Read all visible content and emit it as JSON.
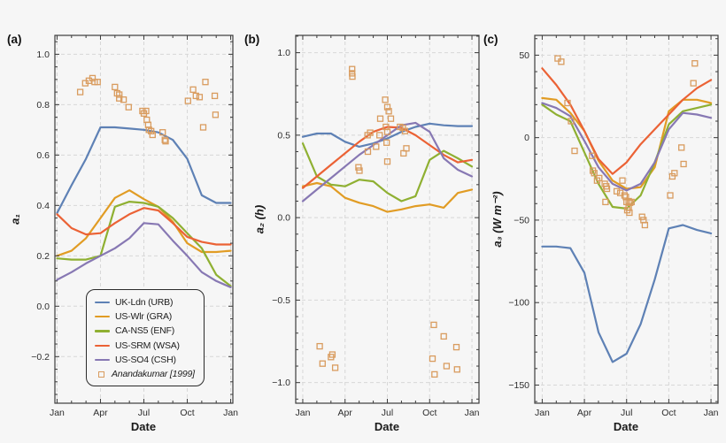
{
  "figure": {
    "background": "#f6f6f6",
    "frame_color": "#3c3c3c",
    "grid_color": "#d7d7d7",
    "tick_label_color": "#2d2d2d",
    "scatter_color": "#d99c5f",
    "series_colors": {
      "blue": "#5e81b5",
      "orange": "#e19c24",
      "green": "#8fb032",
      "red": "#eb6235",
      "purple": "#8778b3"
    }
  },
  "legend": {
    "items": [
      {
        "label": "UK-Ldn (URB)",
        "color": "#5e81b5",
        "type": "line"
      },
      {
        "label": "US-Wlr (GRA)",
        "color": "#e19c24",
        "type": "line"
      },
      {
        "label": "CA-NS5 (ENF)",
        "color": "#8fb032",
        "type": "line"
      },
      {
        "label": "US-SRM (WSA)",
        "color": "#eb6235",
        "type": "line"
      },
      {
        "label": "US-SO4 (CSH)",
        "color": "#8778b3",
        "type": "line"
      },
      {
        "label": "Anandakumar [1999]",
        "color": "#d99c5f",
        "type": "marker",
        "italic": true
      }
    ]
  },
  "chart_data": [
    {
      "type": "line",
      "panel_label": "(a)",
      "ylabel": "a₁",
      "xlabel": "Date",
      "x": [
        1,
        2,
        3,
        4,
        5,
        6,
        7,
        8,
        9,
        10,
        11,
        12,
        13
      ],
      "xtick_positions": [
        1,
        4,
        7,
        10,
        13
      ],
      "xtick_labels": [
        "Jan",
        "Apr",
        "Jul",
        "Oct",
        "Jan"
      ],
      "xlim": [
        0.85,
        13.15
      ],
      "ylim": [
        -0.385,
        1.075
      ],
      "ytick_values": [
        1.0,
        0.8,
        0.6,
        0.4,
        0.2,
        0.0,
        -0.2
      ],
      "ytick_labels": [
        "1.0",
        "0.8",
        "0.6",
        "0.4",
        "0.2",
        "0.0",
        "−0.2"
      ],
      "y_minor_step": 0.05,
      "series": [
        {
          "name": "UK-Ldn (URB)",
          "color": "#5e81b5",
          "values": [
            0.37,
            0.48,
            0.585,
            0.71,
            0.71,
            0.705,
            0.7,
            0.69,
            0.66,
            0.585,
            0.44,
            0.41,
            0.41
          ]
        },
        {
          "name": "US-Wlr (GRA)",
          "color": "#e19c24",
          "values": [
            0.2,
            0.22,
            0.27,
            0.35,
            0.43,
            0.46,
            0.425,
            0.395,
            0.335,
            0.25,
            0.215,
            0.215,
            0.22
          ]
        },
        {
          "name": "CA-NS5 (ENF)",
          "color": "#8fb032",
          "values": [
            0.19,
            0.185,
            0.185,
            0.2,
            0.395,
            0.415,
            0.41,
            0.395,
            0.35,
            0.29,
            0.23,
            0.125,
            0.08
          ]
        },
        {
          "name": "US-SRM (WSA)",
          "color": "#eb6235",
          "values": [
            0.365,
            0.31,
            0.285,
            0.29,
            0.33,
            0.365,
            0.39,
            0.38,
            0.33,
            0.275,
            0.255,
            0.245,
            0.245
          ]
        },
        {
          "name": "US-SO4 (CSH)",
          "color": "#8778b3",
          "values": [
            0.105,
            0.135,
            0.17,
            0.2,
            0.23,
            0.27,
            0.33,
            0.325,
            0.26,
            0.2,
            0.135,
            0.1,
            0.075
          ]
        }
      ],
      "scatter": {
        "name": "Anandakumar [1999]",
        "points": [
          [
            2.6,
            0.85
          ],
          [
            2.95,
            0.885
          ],
          [
            3.2,
            0.895
          ],
          [
            3.45,
            0.905
          ],
          [
            3.6,
            0.89
          ],
          [
            3.8,
            0.89
          ],
          [
            5.0,
            0.87
          ],
          [
            5.15,
            0.845
          ],
          [
            5.3,
            0.84
          ],
          [
            5.3,
            0.825
          ],
          [
            5.6,
            0.82
          ],
          [
            5.95,
            0.79
          ],
          [
            6.9,
            0.775
          ],
          [
            7.0,
            0.765
          ],
          [
            7.15,
            0.775
          ],
          [
            7.2,
            0.74
          ],
          [
            7.3,
            0.72
          ],
          [
            7.35,
            0.7
          ],
          [
            7.5,
            0.695
          ],
          [
            7.6,
            0.68
          ],
          [
            8.3,
            0.69
          ],
          [
            8.45,
            0.66
          ],
          [
            8.5,
            0.655
          ],
          [
            10.05,
            0.815
          ],
          [
            10.4,
            0.86
          ],
          [
            10.6,
            0.835
          ],
          [
            10.85,
            0.83
          ],
          [
            11.25,
            0.89
          ],
          [
            11.1,
            0.71
          ],
          [
            11.9,
            0.835
          ],
          [
            11.95,
            0.76
          ]
        ]
      }
    },
    {
      "type": "line",
      "panel_label": "(b)",
      "ylabel": "a₂ (h)",
      "xlabel": "Date",
      "x": [
        1,
        2,
        3,
        4,
        5,
        6,
        7,
        8,
        9,
        10,
        11,
        12,
        13
      ],
      "xtick_positions": [
        1,
        4,
        7,
        10,
        13
      ],
      "xtick_labels": [
        "Jan",
        "Apr",
        "Jul",
        "Oct",
        "Jan"
      ],
      "xlim": [
        0.5,
        13.5
      ],
      "ylim": [
        -1.125,
        1.105
      ],
      "ytick_values": [
        1.0,
        0.5,
        0.0,
        -0.5,
        -1.0
      ],
      "ytick_labels": [
        "1.0",
        "0.5",
        "0.0",
        "−0.5",
        "−1.0"
      ],
      "y_minor_step": 0.1,
      "series": [
        {
          "name": "UK-Ldn (URB)",
          "color": "#5e81b5",
          "values": [
            0.49,
            0.51,
            0.51,
            0.46,
            0.43,
            0.45,
            0.48,
            0.52,
            0.55,
            0.57,
            0.56,
            0.555,
            0.555
          ]
        },
        {
          "name": "US-Wlr (GRA)",
          "color": "#e19c24",
          "values": [
            0.19,
            0.21,
            0.19,
            0.12,
            0.09,
            0.07,
            0.035,
            0.05,
            0.07,
            0.08,
            0.06,
            0.15,
            0.17
          ]
        },
        {
          "name": "CA-NS5 (ENF)",
          "color": "#8fb032",
          "values": [
            0.45,
            0.25,
            0.2,
            0.19,
            0.23,
            0.22,
            0.15,
            0.1,
            0.13,
            0.35,
            0.405,
            0.36,
            0.31
          ]
        },
        {
          "name": "US-SRM (WSA)",
          "color": "#eb6235",
          "values": [
            0.18,
            0.25,
            0.32,
            0.39,
            0.46,
            0.52,
            0.55,
            0.545,
            0.5,
            0.44,
            0.38,
            0.335,
            0.35
          ]
        },
        {
          "name": "US-SO4 (CSH)",
          "color": "#8778b3",
          "values": [
            0.1,
            0.17,
            0.24,
            0.31,
            0.38,
            0.44,
            0.5,
            0.56,
            0.575,
            0.52,
            0.36,
            0.29,
            0.25
          ]
        }
      ],
      "scatter": {
        "name": "Anandakumar [1999]",
        "points": [
          [
            4.5,
            0.9
          ],
          [
            4.5,
            0.875
          ],
          [
            4.52,
            0.855
          ],
          [
            4.95,
            0.305
          ],
          [
            5.02,
            0.285
          ],
          [
            5.6,
            0.5
          ],
          [
            5.78,
            0.515
          ],
          [
            5.62,
            0.4
          ],
          [
            6.2,
            0.43
          ],
          [
            6.45,
            0.5
          ],
          [
            6.5,
            0.6
          ],
          [
            6.85,
            0.715
          ],
          [
            7.0,
            0.67
          ],
          [
            7.1,
            0.645
          ],
          [
            7.25,
            0.6
          ],
          [
            6.9,
            0.55
          ],
          [
            7.0,
            0.52
          ],
          [
            6.95,
            0.455
          ],
          [
            7.0,
            0.34
          ],
          [
            7.9,
            0.55
          ],
          [
            8.1,
            0.545
          ],
          [
            8.25,
            0.525
          ],
          [
            8.15,
            0.39
          ],
          [
            8.35,
            0.42
          ],
          [
            2.2,
            -0.78
          ],
          [
            2.4,
            -0.885
          ],
          [
            3.0,
            -0.845
          ],
          [
            3.1,
            -0.83
          ],
          [
            3.3,
            -0.91
          ],
          [
            10.3,
            -0.65
          ],
          [
            10.2,
            -0.855
          ],
          [
            10.35,
            -0.95
          ],
          [
            11.0,
            -0.72
          ],
          [
            11.2,
            -0.9
          ],
          [
            11.9,
            -0.785
          ],
          [
            11.95,
            -0.92
          ]
        ]
      }
    },
    {
      "type": "line",
      "panel_label": "(c)",
      "ylabel": "a₃ (W m⁻²)",
      "xlabel": "Date",
      "x": [
        1,
        2,
        3,
        4,
        5,
        6,
        7,
        8,
        9,
        10,
        11,
        12,
        13
      ],
      "xtick_positions": [
        1,
        4,
        7,
        10,
        13
      ],
      "xtick_labels": [
        "Jan",
        "Apr",
        "Jul",
        "Oct",
        "Jan"
      ],
      "xlim": [
        0.47,
        13.5
      ],
      "ylim": [
        -161,
        62
      ],
      "ytick_values": [
        50,
        0,
        -50,
        -100,
        -150
      ],
      "ytick_labels": [
        "50",
        "0",
        "−50",
        "−100",
        "−150"
      ],
      "y_minor_step": 10,
      "series": [
        {
          "name": "UK-Ldn (URB)",
          "color": "#5e81b5",
          "values": [
            -66,
            -66,
            -67,
            -82,
            -118,
            -136,
            -131,
            -113,
            -86,
            -55,
            -53,
            -56,
            -58
          ]
        },
        {
          "name": "US-Wlr (GRA)",
          "color": "#e19c24",
          "values": [
            24,
            23,
            15,
            4,
            -14,
            -26,
            -31,
            -30,
            -18,
            16,
            23,
            23,
            21
          ]
        },
        {
          "name": "CA-NS5 (ENF)",
          "color": "#8fb032",
          "values": [
            20,
            14,
            10,
            -9,
            -28,
            -42,
            -43,
            -35,
            -15,
            8,
            16,
            18,
            20
          ]
        },
        {
          "name": "US-SRM (WSA)",
          "color": "#eb6235",
          "values": [
            42,
            32,
            20,
            4,
            -13,
            -22,
            -15,
            -4,
            5,
            14,
            23,
            30,
            35
          ]
        },
        {
          "name": "US-SO4 (CSH)",
          "color": "#8778b3",
          "values": [
            21,
            18,
            13,
            -2,
            -18,
            -28,
            -32,
            -28,
            -15,
            5,
            15,
            14,
            12
          ]
        }
      ],
      "scatter": {
        "name": "Anandakumar [1999]",
        "points": [
          [
            2.1,
            48
          ],
          [
            2.35,
            46
          ],
          [
            2.8,
            21
          ],
          [
            3.05,
            10
          ],
          [
            3.3,
            -8
          ],
          [
            4.55,
            -11
          ],
          [
            4.6,
            -20
          ],
          [
            4.7,
            -21.5
          ],
          [
            4.9,
            -26
          ],
          [
            5.05,
            -24.5
          ],
          [
            5.45,
            -28
          ],
          [
            5.55,
            -29.5
          ],
          [
            5.6,
            -31
          ],
          [
            5.5,
            -39
          ],
          [
            6.3,
            -32.5
          ],
          [
            6.55,
            -33.5
          ],
          [
            6.7,
            -26
          ],
          [
            6.85,
            -35
          ],
          [
            6.95,
            -36
          ],
          [
            7.0,
            -39
          ],
          [
            7.15,
            -38.5
          ],
          [
            7.25,
            -39.5
          ],
          [
            7.35,
            -39
          ],
          [
            7.05,
            -44
          ],
          [
            7.15,
            -42.5
          ],
          [
            7.2,
            -45.5
          ],
          [
            8.1,
            -48
          ],
          [
            8.2,
            -50
          ],
          [
            8.3,
            -53
          ],
          [
            10.1,
            -35
          ],
          [
            10.25,
            -23.5
          ],
          [
            10.4,
            -21.5
          ],
          [
            10.9,
            -6
          ],
          [
            11.05,
            -16
          ],
          [
            11.75,
            33
          ],
          [
            11.85,
            45
          ]
        ]
      }
    }
  ]
}
